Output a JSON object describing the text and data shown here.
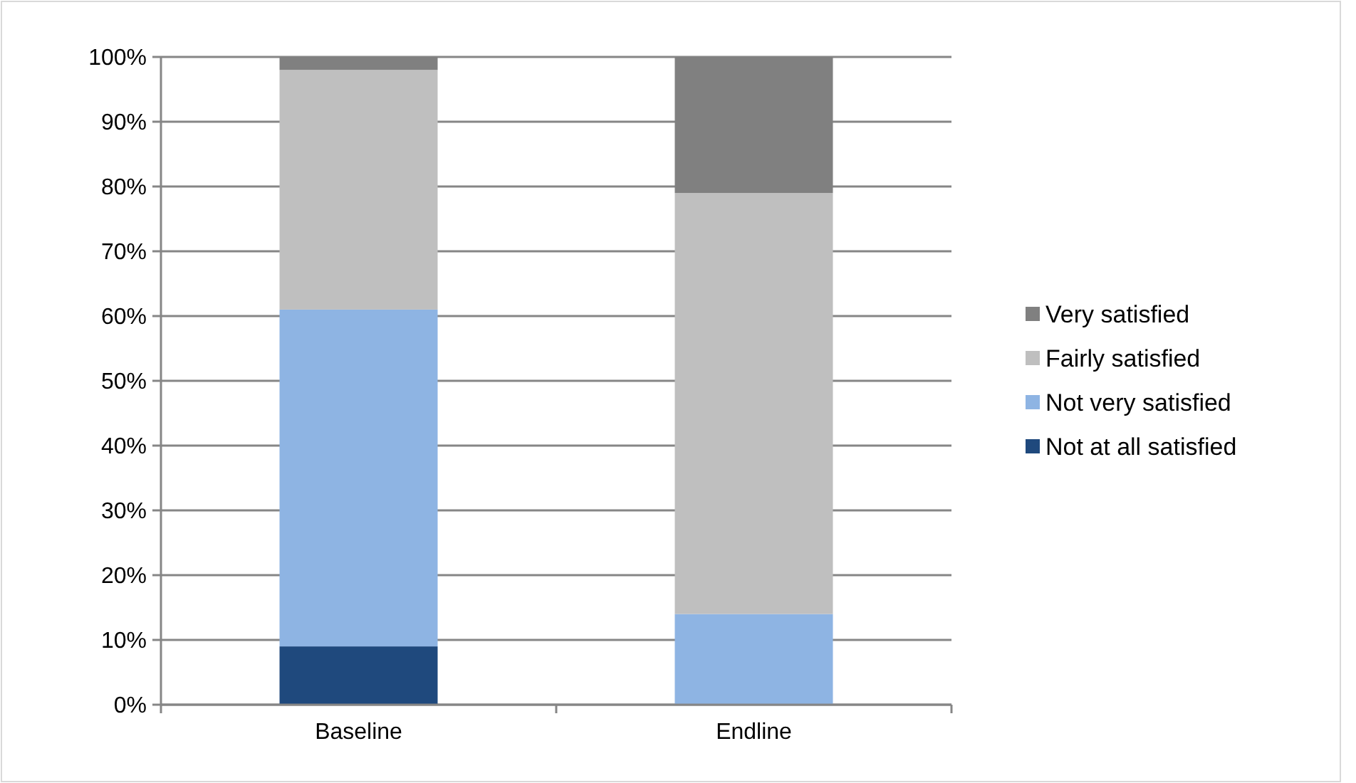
{
  "chart_data": {
    "type": "bar",
    "stacked": true,
    "categories": [
      "Baseline",
      "Endline"
    ],
    "series": [
      {
        "name": "Not at all satisfied",
        "color": "#1f497d",
        "values": [
          9,
          0
        ]
      },
      {
        "name": "Not very satisfied",
        "color": "#8eb4e3",
        "values": [
          52,
          14
        ]
      },
      {
        "name": "Fairly satisfied",
        "color": "#bfbfbf",
        "values": [
          37,
          65
        ]
      },
      {
        "name": "Very satisfied",
        "color": "#808080",
        "values": [
          2,
          21
        ]
      }
    ],
    "ylim": [
      0,
      100
    ],
    "yticks": [
      {
        "value": 0,
        "label": "0%"
      },
      {
        "value": 10,
        "label": "10%"
      },
      {
        "value": 20,
        "label": "20%"
      },
      {
        "value": 30,
        "label": "30%"
      },
      {
        "value": 40,
        "label": "40%"
      },
      {
        "value": 50,
        "label": "50%"
      },
      {
        "value": 60,
        "label": "60%"
      },
      {
        "value": 70,
        "label": "70%"
      },
      {
        "value": 80,
        "label": "80%"
      },
      {
        "value": 90,
        "label": "90%"
      },
      {
        "value": 100,
        "label": "100%"
      }
    ],
    "grid": "y",
    "legend": "right"
  }
}
